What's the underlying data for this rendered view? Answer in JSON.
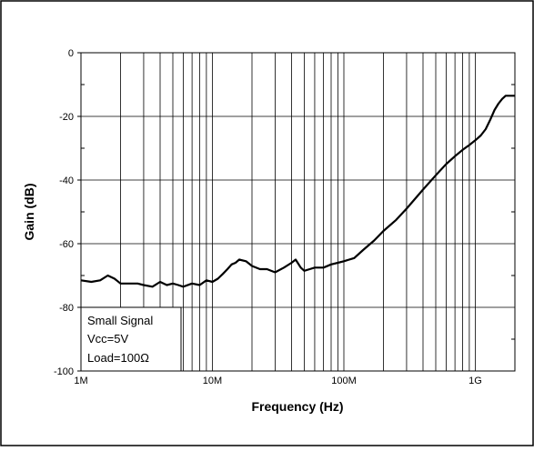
{
  "chart_data": {
    "type": "line",
    "xlabel": "Frequency (Hz)",
    "ylabel": "Gain (dB)",
    "xscale": "log",
    "xlim": [
      1000000,
      2000000000
    ],
    "ylim": [
      -100,
      0
    ],
    "grid": true,
    "x_tick_labels": [
      {
        "value": 1000000,
        "label": "1M"
      },
      {
        "value": 10000000,
        "label": "10M"
      },
      {
        "value": 100000000,
        "label": "100M"
      },
      {
        "value": 1000000000,
        "label": "1G"
      }
    ],
    "y_tick_labels": [
      {
        "value": 0,
        "label": "0"
      },
      {
        "value": -20,
        "label": "-20"
      },
      {
        "value": -40,
        "label": "-40"
      },
      {
        "value": -60,
        "label": "-60"
      },
      {
        "value": -80,
        "label": "-80"
      },
      {
        "value": -100,
        "label": "-100"
      }
    ],
    "annotation": {
      "lines": [
        "Small Signal",
        "Vcc=5V",
        "Load=100Ω"
      ],
      "placement": "bottom-left"
    },
    "series": [
      {
        "color": "#000000",
        "x": [
          1000000,
          1200000,
          1400000,
          1600000,
          1800000,
          2000000,
          2300000,
          2700000,
          3000000,
          3500000,
          4000000,
          4500000,
          5000000,
          5500000,
          6000000,
          7000000,
          8000000,
          9000000,
          10000000,
          11000000,
          12000000,
          13000000,
          14000000,
          15000000,
          16000000,
          18000000,
          20000000,
          23000000,
          26000000,
          30000000,
          35000000,
          40000000,
          43000000,
          47000000,
          50000000,
          55000000,
          60000000,
          70000000,
          80000000,
          90000000,
          100000000,
          120000000,
          140000000,
          170000000,
          200000000,
          250000000,
          300000000,
          400000000,
          500000000,
          600000000,
          700000000,
          800000000,
          900000000,
          1000000000,
          1100000000,
          1200000000,
          1300000000,
          1400000000,
          1500000000,
          1600000000,
          1700000000,
          1800000000,
          1900000000,
          2000000000
        ],
        "y": [
          -71.5,
          -72,
          -71.5,
          -70,
          -71,
          -72.5,
          -72.5,
          -72.5,
          -73,
          -73.5,
          -72,
          -73,
          -72.5,
          -73,
          -73.5,
          -72.5,
          -73,
          -71.5,
          -72,
          -71,
          -69.5,
          -68,
          -66.5,
          -66,
          -65,
          -65.5,
          -67,
          -68,
          -68,
          -69,
          -67.5,
          -66,
          -65,
          -67.5,
          -68.5,
          -68,
          -67.5,
          -67.5,
          -66.5,
          -66,
          -65.5,
          -64.5,
          -62,
          -59,
          -56,
          -52.5,
          -49,
          -43,
          -38.5,
          -35,
          -32.5,
          -30.5,
          -29,
          -27.5,
          -26,
          -24,
          -21,
          -18,
          -16,
          -14.5,
          -13.5,
          -13.5,
          -13.5,
          -13.5
        ]
      }
    ]
  }
}
